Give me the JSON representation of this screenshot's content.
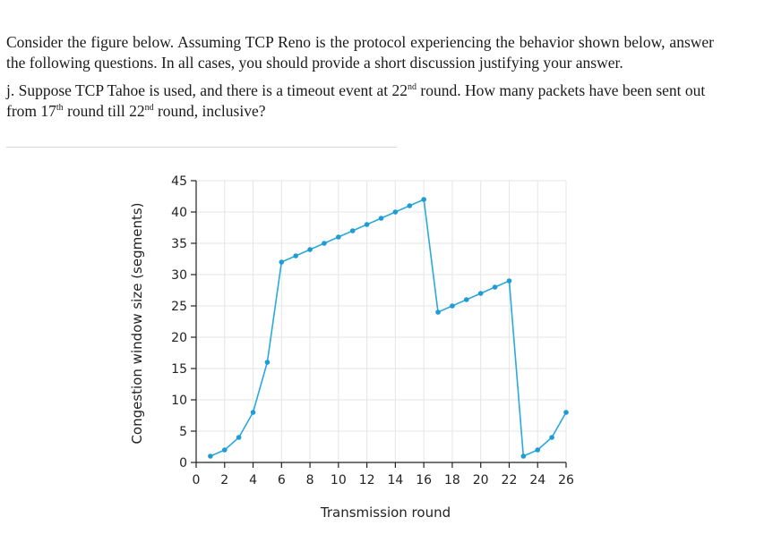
{
  "question": {
    "intro": "Consider the figure below. Assuming TCP Reno is the protocol experiencing the behavior shown below, answer the following questions. In all cases, you should provide a short discussion justifying your answer.",
    "part_prefix": "j. Suppose TCP Tahoe is used, and there is a timeout event at 22",
    "part_sup1": "nd",
    "part_mid1": " round. How many packets have been sent out from 17",
    "part_sup2": "th",
    "part_mid2": " round till 22",
    "part_sup3": "nd",
    "part_end": " round, inclusive?"
  },
  "chart_data": {
    "type": "line",
    "title": "",
    "xlabel": "Transmission round",
    "ylabel": "Congestion window size (segments)",
    "xlim": [
      0,
      26
    ],
    "ylim": [
      0,
      45
    ],
    "xticks": [
      0,
      2,
      4,
      6,
      8,
      10,
      12,
      14,
      16,
      18,
      20,
      22,
      24,
      26
    ],
    "yticks": [
      0,
      5,
      10,
      15,
      20,
      25,
      30,
      35,
      40,
      45
    ],
    "grid": true,
    "line_color": "#29a9e0",
    "marker_color": "#1f9bd6",
    "series": [
      {
        "x": [
          1,
          2,
          3,
          4,
          5,
          6,
          7,
          8,
          9,
          10,
          11,
          12,
          13,
          14,
          15,
          16,
          17,
          18,
          19,
          20,
          21,
          22,
          23,
          24,
          25,
          26
        ],
        "y": [
          1,
          2,
          4,
          8,
          16,
          32,
          33,
          34,
          35,
          36,
          37,
          38,
          39,
          40,
          41,
          42,
          24,
          25,
          26,
          27,
          28,
          29,
          1,
          2,
          4,
          8
        ]
      }
    ]
  }
}
